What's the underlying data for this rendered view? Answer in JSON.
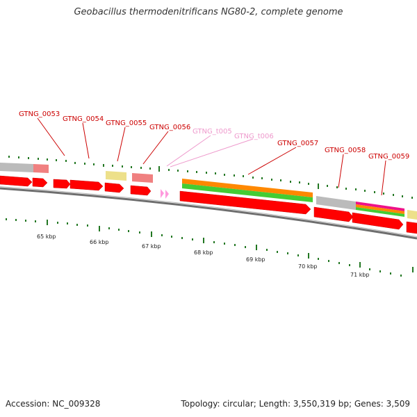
{
  "title": "Geobacillus thermodenitrificans NG80-2, complete genome",
  "footer": {
    "accession": "Accession: NC_009328",
    "stats": "Topology: circular; Length: 3,550,319 bp; Genes: 3,509"
  },
  "colors": {
    "cds": "#ff0000",
    "trna": "#ff99dd",
    "gene_label": "#cc0000",
    "trna_label": "#ee99cc",
    "tick": "#227722",
    "orange": "#ff8800",
    "green": "#44cc33",
    "gray": "#bbbbbb",
    "salmon": "#f08080",
    "yellow": "#ede08a",
    "magenta": "#ee1188"
  },
  "kbp_labels": [
    "65 kbp",
    "66 kbp",
    "67 kbp",
    "68 kbp",
    "69 kbp",
    "70 kbp",
    "71 kbp"
  ],
  "gene_labels": [
    {
      "id": "gtng-0053",
      "text": "GTNG_0053",
      "kind": "gene"
    },
    {
      "id": "gtng-0054",
      "text": "GTNG_0054",
      "kind": "gene"
    },
    {
      "id": "gtng-0055",
      "text": "GTNG_0055",
      "kind": "gene"
    },
    {
      "id": "gtng-0056",
      "text": "GTNG_0056",
      "kind": "gene"
    },
    {
      "id": "gtng-t005",
      "text": "GTNG_t005",
      "kind": "trna"
    },
    {
      "id": "gtng-t006",
      "text": "GTNG_t006",
      "kind": "trna"
    },
    {
      "id": "gtng-0057",
      "text": "GTNG_0057",
      "kind": "gene"
    },
    {
      "id": "gtng-0058",
      "text": "GTNG_0058",
      "kind": "gene"
    },
    {
      "id": "gtng-0059",
      "text": "GTNG_0059",
      "kind": "gene"
    }
  ]
}
